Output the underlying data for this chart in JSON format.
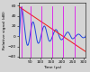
{
  "xlabel": "Time (μs)",
  "ylabel": "Relative signal (dB)",
  "xlim": [
    0,
    310
  ],
  "ylim": [
    -42,
    65
  ],
  "yticks": [
    -40,
    -20,
    0,
    20,
    40,
    60
  ],
  "xticks": [
    50,
    100,
    150,
    200,
    250,
    300
  ],
  "background_color": "#d4d4d4",
  "blue_color": "#2244dd",
  "red_color": "#ee2222",
  "magenta_color": "#dd00ee",
  "red_x": [
    0,
    310
  ],
  "red_y": [
    58,
    -30
  ],
  "magenta_x_positions": [
    10,
    55,
    105,
    155,
    205,
    258
  ],
  "figsize": [
    1.0,
    0.8
  ],
  "dpi": 100
}
